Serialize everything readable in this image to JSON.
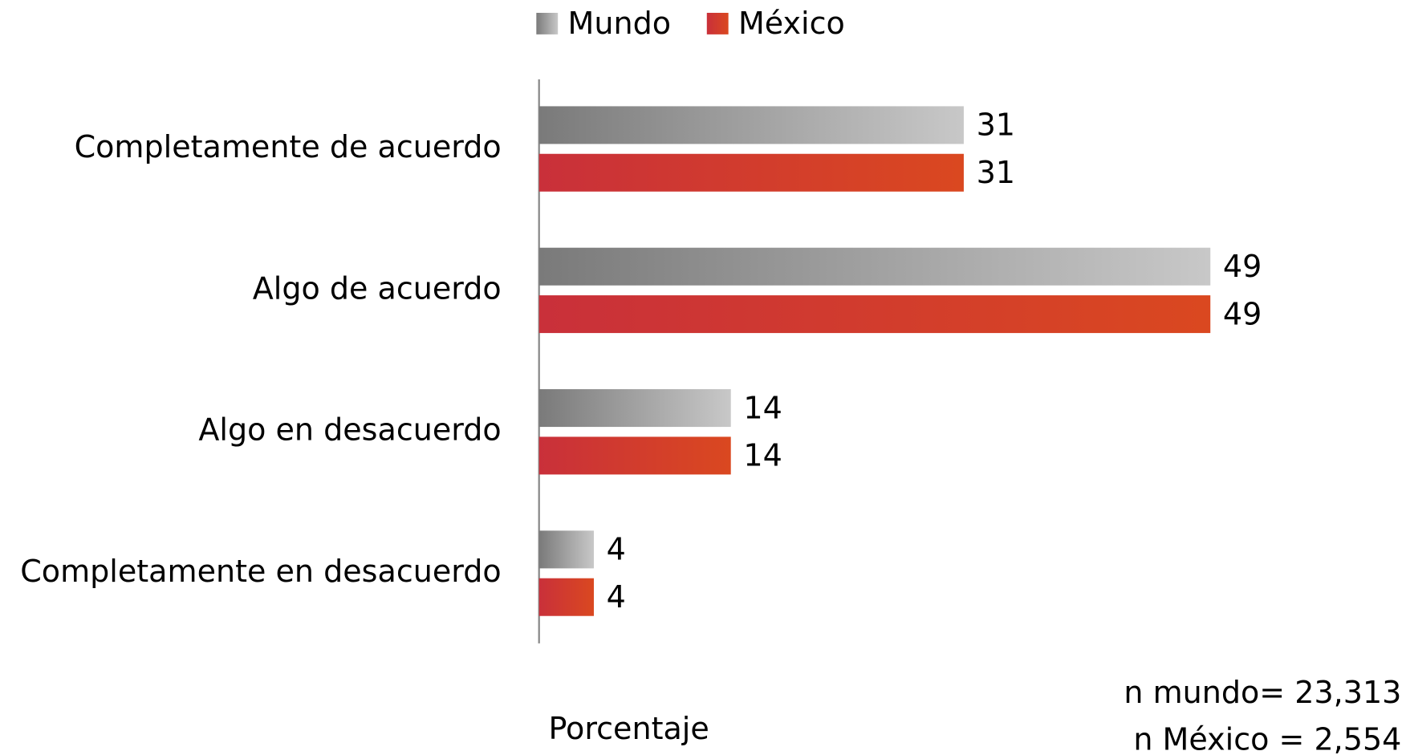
{
  "chart_data": {
    "type": "hbar",
    "categories": [
      "Completamente de acuerdo",
      "Algo de acuerdo",
      "Algo en desacuerdo",
      "Completamente en desacuerdo"
    ],
    "series": [
      {
        "name": "Mundo",
        "color": "#808080",
        "gradient": [
          "#7a7a7a",
          "#c8c8c8"
        ],
        "values": [
          31,
          49,
          14,
          4
        ]
      },
      {
        "name": "México",
        "color": "#d03535",
        "gradient": [
          "#c9303a",
          "#da4820"
        ],
        "values": [
          31,
          49,
          14,
          4
        ]
      }
    ],
    "xlim": [
      0,
      60
    ],
    "x_label": "Porcentaje",
    "notes": [
      "n mundo= 23,313",
      "n México = 2,554"
    ],
    "legend": "top"
  }
}
